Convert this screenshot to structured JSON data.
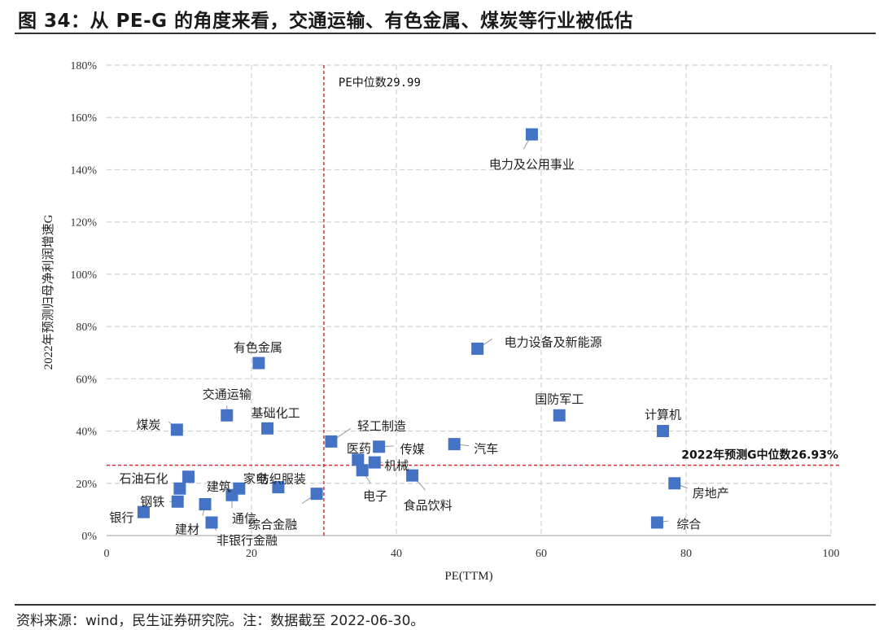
{
  "figure_title": "图 34：从 PE-G 的角度来看，交通运输、有色金属、煤炭等行业被低估",
  "source_note": "资料来源：wind，民生证券研究院。注：数据截至 2022-06-30。",
  "chart_data": {
    "type": "scatter",
    "title": "",
    "xlabel": "PE(TTM)",
    "ylabel": "2022年预测归母净利润增速G",
    "xlim": [
      0,
      100
    ],
    "ylim": [
      0,
      1.8
    ],
    "x_ticks": [
      {
        "value": 0,
        "label": "0"
      },
      {
        "value": 20,
        "label": "20"
      },
      {
        "value": 40,
        "label": "40"
      },
      {
        "value": 60,
        "label": "60"
      },
      {
        "value": 80,
        "label": "80"
      },
      {
        "value": 100,
        "label": "100"
      }
    ],
    "y_ticks": [
      {
        "value": 0,
        "label": "0%"
      },
      {
        "value": 0.2,
        "label": "20%"
      },
      {
        "value": 0.4,
        "label": "40%"
      },
      {
        "value": 0.6,
        "label": "60%"
      },
      {
        "value": 0.8,
        "label": "80%"
      },
      {
        "value": 1.0,
        "label": "100%"
      },
      {
        "value": 1.2,
        "label": "120%"
      },
      {
        "value": 1.4,
        "label": "140%"
      },
      {
        "value": 1.6,
        "label": "160%"
      },
      {
        "value": 1.8,
        "label": "180%"
      }
    ],
    "grid": true,
    "marker_color": "#4472C4",
    "reference_color": "#E02020",
    "reference_lines": [
      {
        "axis": "x",
        "value": 29.99,
        "label": "PE中位数29.99"
      },
      {
        "axis": "y",
        "value": 0.2693,
        "label": "2022年预测G中位数26.93%"
      }
    ],
    "points": [
      {
        "name": "电力及公用事业",
        "x": 58.7,
        "y": 1.535
      },
      {
        "name": "电力设备及新能源",
        "x": 51.2,
        "y": 0.715
      },
      {
        "name": "有色金属",
        "x": 21.0,
        "y": 0.66
      },
      {
        "name": "国防军工",
        "x": 62.5,
        "y": 0.46
      },
      {
        "name": "计算机",
        "x": 76.8,
        "y": 0.4
      },
      {
        "name": "交通运输",
        "x": 16.6,
        "y": 0.46
      },
      {
        "name": "基础化工",
        "x": 22.2,
        "y": 0.41
      },
      {
        "name": "煤炭",
        "x": 9.7,
        "y": 0.405
      },
      {
        "name": "轻工制造",
        "x": 31.0,
        "y": 0.36
      },
      {
        "name": "汽车",
        "x": 48.0,
        "y": 0.35
      },
      {
        "name": "传媒",
        "x": 37.6,
        "y": 0.34
      },
      {
        "name": "医药",
        "x": 34.7,
        "y": 0.29
      },
      {
        "name": "机械",
        "x": 37.0,
        "y": 0.28
      },
      {
        "name": "电子",
        "x": 35.3,
        "y": 0.25
      },
      {
        "name": "食品饮料",
        "x": 42.2,
        "y": 0.23
      },
      {
        "name": "石油石化",
        "x": 11.3,
        "y": 0.225
      },
      {
        "name": "房地产",
        "x": 78.4,
        "y": 0.2
      },
      {
        "name": "纺织服装",
        "x": 23.7,
        "y": 0.185
      },
      {
        "name": "家电",
        "x": 18.3,
        "y": 0.18
      },
      {
        "name": "建筑",
        "x": 10.1,
        "y": 0.18
      },
      {
        "name": "综合金融",
        "x": 29.0,
        "y": 0.16
      },
      {
        "name": "通信",
        "x": 17.3,
        "y": 0.155
      },
      {
        "name": "钢铁",
        "x": 9.8,
        "y": 0.13
      },
      {
        "name": "建材",
        "x": 13.6,
        "y": 0.12
      },
      {
        "name": "银行",
        "x": 5.1,
        "y": 0.09
      },
      {
        "name": "非银行金融",
        "x": 14.5,
        "y": 0.05
      },
      {
        "name": "综合",
        "x": 76.0,
        "y": 0.05
      }
    ]
  }
}
